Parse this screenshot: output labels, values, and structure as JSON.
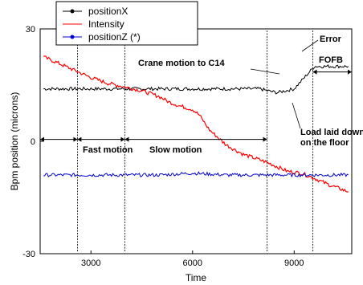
{
  "chart_data": {
    "type": "line",
    "xlabel": "Time",
    "ylabel": "Bpm position (microns)",
    "xlim": [
      1500,
      10700
    ],
    "ylim": [
      -30,
      30
    ],
    "xticks": [
      3000,
      6000,
      9000
    ],
    "yticks": [
      30,
      0,
      -30
    ],
    "legend_position": "top-left",
    "series": [
      {
        "name": "positionX",
        "color": "#000000",
        "marker": "dot",
        "points": [
          [
            1600,
            14
          ],
          [
            2600,
            14
          ],
          [
            3000,
            14
          ],
          [
            4000,
            14
          ],
          [
            5000,
            14
          ],
          [
            6000,
            14
          ],
          [
            7000,
            14
          ],
          [
            8000,
            14
          ],
          [
            8200,
            13.5
          ],
          [
            8500,
            13
          ],
          [
            9000,
            14
          ],
          [
            9300,
            17
          ],
          [
            9600,
            20
          ],
          [
            10000,
            20
          ],
          [
            10600,
            20
          ]
        ]
      },
      {
        "name": "Intensity",
        "color": "#ff0000",
        "marker": "none",
        "points": [
          [
            1600,
            22.5
          ],
          [
            2000,
            21
          ],
          [
            2500,
            19
          ],
          [
            3000,
            17
          ],
          [
            3500,
            15.5
          ],
          [
            4000,
            14.5
          ],
          [
            4500,
            13.5
          ],
          [
            5000,
            12
          ],
          [
            5300,
            10.5
          ],
          [
            5600,
            9.5
          ],
          [
            6000,
            8.5
          ],
          [
            6200,
            7
          ],
          [
            6500,
            3
          ],
          [
            7000,
            -1
          ],
          [
            7500,
            -3.5
          ],
          [
            8000,
            -5
          ],
          [
            8300,
            -6
          ],
          [
            8800,
            -8
          ],
          [
            9200,
            -8.5
          ],
          [
            9500,
            -9.5
          ],
          [
            10000,
            -11.5
          ],
          [
            10600,
            -13.5
          ]
        ]
      },
      {
        "name": "positionZ (*)",
        "color": "#0000cc",
        "marker": "dot",
        "points": [
          [
            1600,
            -9
          ],
          [
            2600,
            -9
          ],
          [
            3000,
            -9
          ],
          [
            4000,
            -9
          ],
          [
            5000,
            -9
          ],
          [
            6000,
            -8.5
          ],
          [
            7000,
            -9
          ],
          [
            8000,
            -9
          ],
          [
            9000,
            -9
          ],
          [
            9600,
            -9
          ],
          [
            10600,
            -9
          ]
        ]
      }
    ],
    "vertical_lines_x": [
      2600,
      4000,
      8200,
      9550
    ],
    "annotations": {
      "fast": "Fast motion",
      "slow": "Slow motion",
      "crane": "Crane motion to C14",
      "error": "Error",
      "fofb": "FOFB",
      "load_line1": "Load laid down",
      "load_line2": "on the floor"
    }
  }
}
